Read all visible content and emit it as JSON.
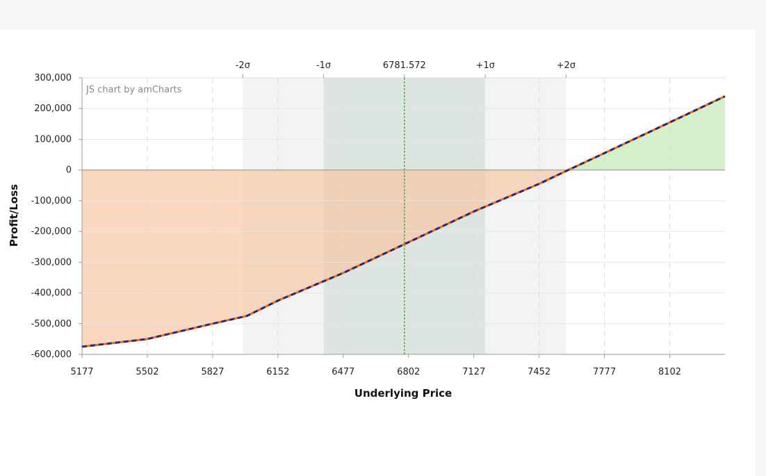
{
  "chart_data": {
    "type": "line",
    "credit": "JS chart by amCharts",
    "xlabel": "Underlying Price",
    "ylabel": "Profit/Loss",
    "xlim": [
      5177,
      8377
    ],
    "ylim": [
      -600000,
      300000
    ],
    "x_ticks": [
      5177,
      5502,
      5827,
      6152,
      6477,
      6802,
      7127,
      7452,
      7777,
      8102
    ],
    "y_ticks": [
      {
        "value": 300000,
        "label": "300,000"
      },
      {
        "value": 200000,
        "label": "200,000"
      },
      {
        "value": 100000,
        "label": "100,000"
      },
      {
        "value": 0,
        "label": "0"
      },
      {
        "value": -100000,
        "label": "-100,000"
      },
      {
        "value": -200000,
        "label": "-200,000"
      },
      {
        "value": -300000,
        "label": "-300,000"
      },
      {
        "value": -400000,
        "label": "-400,000"
      },
      {
        "value": -500000,
        "label": "-500,000"
      },
      {
        "value": -600000,
        "label": "-600,000"
      }
    ],
    "top_markers": [
      {
        "label": "-2σ",
        "x": 5977
      },
      {
        "label": "-1σ",
        "x": 6379
      },
      {
        "label": "6781.572",
        "x": 6781.572
      },
      {
        "label": "+1σ",
        "x": 7184
      },
      {
        "label": "+2σ",
        "x": 7586
      }
    ],
    "bands": [
      {
        "from": 5977,
        "to": 7586,
        "color": "#dde3e0",
        "opacity": 0.4
      },
      {
        "from": 6379,
        "to": 7184,
        "color": "#c5d2cc",
        "opacity": 0.45
      }
    ],
    "current_price": {
      "x": 6781.572,
      "color": "#2e9e2e"
    },
    "grid": true,
    "series": [
      {
        "x": [
          5177,
          5502,
          5827,
          5997,
          6152,
          6477,
          6802,
          7127,
          7452,
          7597,
          7777,
          8102,
          8377
        ],
        "values": [
          -575000,
          -550000,
          -500000,
          -475000,
          -425000,
          -335000,
          -235000,
          -135000,
          -45000,
          0,
          55000,
          155000,
          240000
        ],
        "line_color": "#ff6600",
        "dash_color": "#1c2a8c",
        "loss_fill": "#f7c8a4",
        "profit_fill": "#b8e6a8"
      }
    ]
  }
}
